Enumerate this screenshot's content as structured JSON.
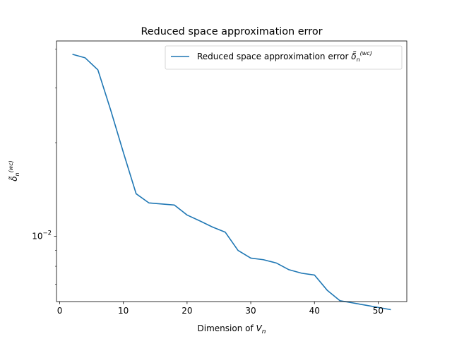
{
  "chart_data": {
    "type": "line",
    "title": "Reduced space approximation error",
    "xlabel": "Dimension of V_n",
    "ylabel": "δ̃_n^(wc)",
    "xlim": [
      -0.5,
      54.5
    ],
    "ylim": [
      0.00616,
      0.0425
    ],
    "yscale": "log",
    "grid": false,
    "legend_position": "top-right",
    "x_ticks": [
      0,
      10,
      20,
      30,
      40,
      50
    ],
    "y_ticks": [
      0.01
    ],
    "series": [
      {
        "name": "Reduced space approximation error δ̃_n^(wc)",
        "color": "#1f77b4",
        "x": [
          2,
          4,
          6,
          8,
          10,
          12,
          14,
          16,
          18,
          20,
          22,
          24,
          26,
          28,
          30,
          32,
          34,
          36,
          38,
          40,
          42,
          44,
          46,
          48,
          50,
          52
        ],
        "y": [
          0.0385,
          0.0375,
          0.0343,
          0.0255,
          0.0186,
          0.0137,
          0.0128,
          0.0127,
          0.0126,
          0.0117,
          0.0112,
          0.0107,
          0.0103,
          0.009,
          0.0085,
          0.0084,
          0.0082,
          0.0078,
          0.0076,
          0.0075,
          0.0067,
          0.0062,
          0.0061,
          0.006,
          0.0059,
          0.0058
        ]
      }
    ]
  }
}
